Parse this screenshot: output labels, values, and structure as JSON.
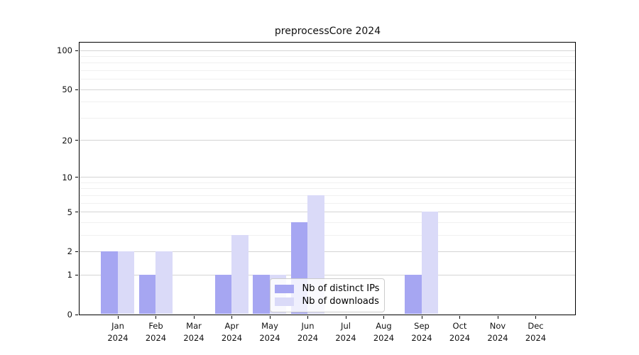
{
  "figure": {
    "background": "#ffffff"
  },
  "chart_data": {
    "type": "bar",
    "title": "preprocessCore 2024",
    "xlabel": "",
    "ylabel": "",
    "x_categories": [
      {
        "month": "Jan",
        "year": "2024"
      },
      {
        "month": "Feb",
        "year": "2024"
      },
      {
        "month": "Mar",
        "year": "2024"
      },
      {
        "month": "Apr",
        "year": "2024"
      },
      {
        "month": "May",
        "year": "2024"
      },
      {
        "month": "Jun",
        "year": "2024"
      },
      {
        "month": "Jul",
        "year": "2024"
      },
      {
        "month": "Aug",
        "year": "2024"
      },
      {
        "month": "Sep",
        "year": "2024"
      },
      {
        "month": "Oct",
        "year": "2024"
      },
      {
        "month": "Nov",
        "year": "2024"
      },
      {
        "month": "Dec",
        "year": "2024"
      }
    ],
    "series": [
      {
        "name": "Nb of distinct IPs",
        "color": "#a6a6f2",
        "values": [
          2,
          1,
          0,
          1,
          1,
          4,
          0,
          0,
          1,
          0,
          0,
          0
        ]
      },
      {
        "name": "Nb of downloads",
        "color": "#dadaf8",
        "values": [
          2,
          2,
          0,
          3,
          1,
          7,
          0,
          0,
          5,
          0,
          0,
          0
        ]
      }
    ],
    "yscale": "log1p",
    "ylim": [
      0,
      115
    ],
    "y_major_ticks": [
      0,
      1,
      2,
      5,
      10,
      20,
      50,
      100
    ],
    "y_minor_gridlines": [
      3,
      4,
      6,
      7,
      8,
      9,
      30,
      40,
      60,
      70,
      80,
      90
    ],
    "grid": "horizontal-only",
    "legend_position": "inside-bottom-center"
  },
  "colors": {
    "axis": "#000000",
    "grid_major": "#d4d4d4",
    "grid_minor": "#f0f0f0",
    "legend_border": "#cccccc",
    "legend_background": "#ffffff"
  }
}
